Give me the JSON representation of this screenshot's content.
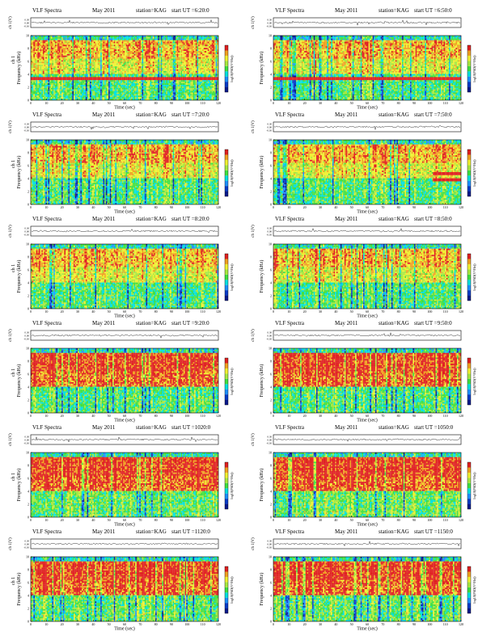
{
  "common": {
    "spectra_label": "VLF Spectra",
    "date": "May 2011",
    "station": "station=KAG",
    "time_axis_label": "Time (sec)",
    "waveform_label": "ch 1(V)",
    "freq_label_left": "Frequency (kHz)",
    "freq_label_right": "Frequency (kHz)",
    "channel_label": "ch 1",
    "colorbar_label": "log10(PSD(V²/Hz))",
    "waveform_ticks": [
      "0.30",
      "0.00",
      "-0.30"
    ],
    "x_ticks": [
      0,
      10,
      20,
      30,
      40,
      50,
      60,
      70,
      80,
      90,
      100,
      110,
      120
    ],
    "y_ticks": [
      0,
      2,
      4,
      6,
      8,
      10
    ],
    "colormap": [
      "#0a1a8c",
      "#0a3cc8",
      "#1e90ff",
      "#00e0e0",
      "#40e040",
      "#a8e840",
      "#f0f030",
      "#f0a020",
      "#e02020"
    ]
  },
  "panels": [
    {
      "start_ut": "start  UT =6:20:0"
    },
    {
      "start_ut": "start  UT =6:50:0"
    },
    {
      "start_ut": "start  UT =7:20:0"
    },
    {
      "start_ut": "start  UT =7:50:0"
    },
    {
      "start_ut": "start  UT =8:20:0"
    },
    {
      "start_ut": "start  UT =8:50:0"
    },
    {
      "start_ut": "start  UT =9:20:0"
    },
    {
      "start_ut": "start  UT =9:50:0"
    },
    {
      "start_ut": "start  UT =1020:0"
    },
    {
      "start_ut": "start  UT =1050:0"
    },
    {
      "start_ut": "start  UT =1120:0"
    },
    {
      "start_ut": "start  UT =1150:0"
    }
  ],
  "chart_data": {
    "type": "heatmap",
    "xlabel": "Time (sec)",
    "ylabel": "Frequency (kHz)",
    "xlim": [
      0,
      120
    ],
    "ylim": [
      0,
      10
    ]
  }
}
